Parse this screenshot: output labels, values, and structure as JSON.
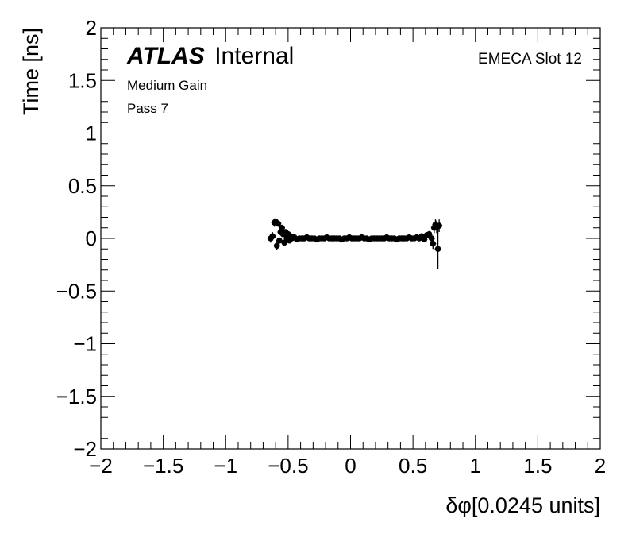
{
  "chart_data": {
    "type": "scatter",
    "title": "",
    "xlabel": "δφ[0.0245 units]",
    "ylabel": "Time [ns]",
    "xlim": [
      -2,
      2
    ],
    "ylim": [
      -2,
      2
    ],
    "grid": false,
    "x_ticks": [
      -2,
      -1.5,
      -1,
      -0.5,
      0,
      0.5,
      1,
      1.5,
      2
    ],
    "y_ticks": [
      -2,
      -1.5,
      -1,
      -0.5,
      0,
      0.5,
      1,
      1.5,
      2
    ],
    "x_tick_labels": [
      "−2",
      "−1.5",
      "−1",
      "−0.5",
      "0",
      "0.5",
      "1",
      "1.5",
      "2"
    ],
    "y_tick_labels": [
      "−2",
      "−1.5",
      "−1",
      "−0.5",
      "0",
      "0.5",
      "1",
      "1.5",
      "2"
    ],
    "annotations": {
      "atlas_bold": "ATLAS",
      "atlas_internal": "Internal",
      "gain": "Medium Gain",
      "pass": "Pass 7",
      "slot": "EMECA Slot 12"
    },
    "series": [
      {
        "x": [
          -0.64,
          -0.625,
          -0.61,
          -0.6,
          -0.59,
          -0.58,
          -0.57,
          -0.56,
          -0.55,
          -0.54,
          -0.53,
          -0.52,
          -0.51,
          -0.5,
          -0.49,
          -0.48,
          -0.47,
          -0.45,
          -0.43,
          -0.41,
          -0.39,
          -0.37,
          -0.35,
          -0.33,
          -0.31,
          -0.29,
          -0.27,
          -0.25,
          -0.23,
          -0.21,
          -0.19,
          -0.17,
          -0.15,
          -0.13,
          -0.11,
          -0.09,
          -0.07,
          -0.05,
          -0.03,
          -0.01,
          0.01,
          0.03,
          0.05,
          0.07,
          0.09,
          0.11,
          0.13,
          0.15,
          0.17,
          0.19,
          0.21,
          0.23,
          0.25,
          0.27,
          0.29,
          0.31,
          0.33,
          0.35,
          0.37,
          0.39,
          0.41,
          0.43,
          0.45,
          0.47,
          0.49,
          0.51,
          0.53,
          0.55,
          0.57,
          0.59,
          0.61,
          0.63,
          0.65,
          0.66,
          0.67,
          0.68,
          0.69,
          0.7,
          0.71
        ],
        "y": [
          0.0,
          0.02,
          0.15,
          0.16,
          -0.07,
          0.14,
          -0.02,
          0.06,
          0.1,
          0.04,
          -0.04,
          0.06,
          0.0,
          0.04,
          -0.02,
          0.02,
          0.0,
          0.01,
          -0.01,
          0.0,
          0.0,
          0.0,
          0.01,
          0.0,
          0.0,
          0.0,
          -0.01,
          0.0,
          0.0,
          0.0,
          0.01,
          0.0,
          0.0,
          0.0,
          0.0,
          0.0,
          -0.01,
          0.0,
          0.0,
          0.01,
          0.0,
          0.0,
          0.0,
          0.0,
          0.01,
          0.0,
          0.0,
          -0.01,
          0.0,
          0.0,
          0.0,
          0.0,
          0.0,
          0.0,
          0.01,
          0.0,
          0.0,
          0.0,
          -0.01,
          0.0,
          0.0,
          0.0,
          0.0,
          0.01,
          0.0,
          0.0,
          0.01,
          0.0,
          0.02,
          -0.01,
          0.03,
          0.04,
          0.0,
          -0.05,
          0.1,
          0.13,
          0.11,
          -0.1,
          0.12
        ],
        "yerr": [
          0.04,
          0.04,
          0.04,
          0.03,
          0.04,
          0.03,
          0.03,
          0.03,
          0.03,
          0.03,
          0.02,
          0.02,
          0.02,
          0.02,
          0.02,
          0.02,
          0.02,
          0.01,
          0.01,
          0.01,
          0.01,
          0.01,
          0.01,
          0.01,
          0.01,
          0.01,
          0.01,
          0.01,
          0.01,
          0.01,
          0.01,
          0.01,
          0.01,
          0.01,
          0.01,
          0.01,
          0.01,
          0.01,
          0.01,
          0.01,
          0.01,
          0.01,
          0.01,
          0.01,
          0.01,
          0.01,
          0.01,
          0.01,
          0.01,
          0.01,
          0.01,
          0.01,
          0.01,
          0.01,
          0.01,
          0.01,
          0.01,
          0.01,
          0.01,
          0.01,
          0.01,
          0.01,
          0.01,
          0.01,
          0.01,
          0.02,
          0.02,
          0.02,
          0.02,
          0.02,
          0.03,
          0.03,
          0.04,
          0.05,
          0.05,
          0.05,
          0.06,
          0.19,
          0.06
        ]
      }
    ]
  }
}
